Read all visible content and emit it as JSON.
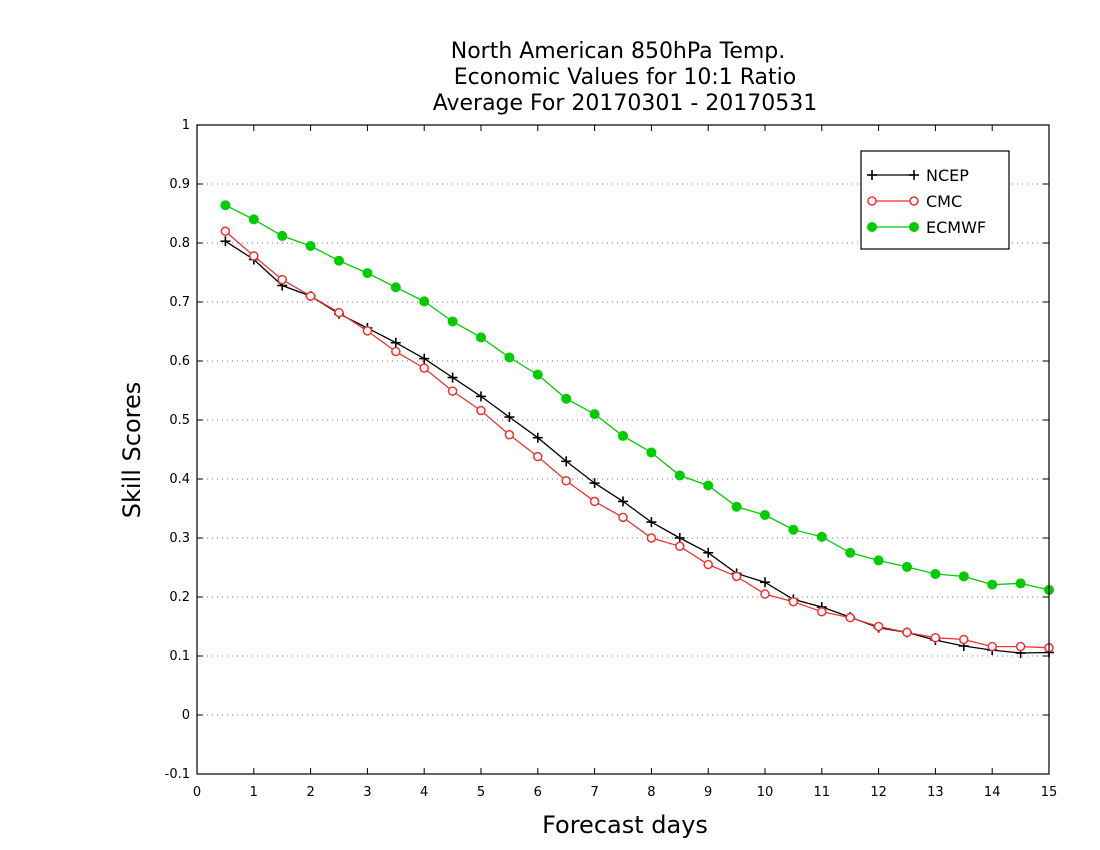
{
  "chart_data": {
    "type": "line",
    "title_lines": [
      "North American 850hPa Temp.",
      "Economic Values for 10:1 Ratio",
      "Average For 20170301 - 20170531"
    ],
    "xlabel": "Forecast days",
    "ylabel": "Skill Scores",
    "xlim": [
      0,
      15
    ],
    "ylim": [
      -0.1,
      1
    ],
    "x_ticks": [
      0,
      1,
      2,
      3,
      4,
      5,
      6,
      7,
      8,
      9,
      10,
      11,
      12,
      13,
      14,
      15
    ],
    "x_tick_labels": [
      "0",
      "1",
      "2",
      "3",
      "4",
      "5",
      "6",
      "7",
      "8",
      "9",
      "10",
      "11",
      "12",
      "13",
      "14",
      "15"
    ],
    "y_ticks": [
      -0.1,
      0,
      0.1,
      0.2,
      0.3,
      0.4,
      0.5,
      0.6,
      0.7,
      0.8,
      0.9,
      1
    ],
    "y_tick_labels": [
      "-0.1",
      "0",
      "0.1",
      "0.2",
      "0.3",
      "0.4",
      "0.5",
      "0.6",
      "0.7",
      "0.8",
      "0.9",
      "1"
    ],
    "grid": "horizontal dotted",
    "legend_position": "top-right",
    "x": [
      0.5,
      1,
      1.5,
      2,
      2.5,
      3,
      3.5,
      4,
      4.5,
      5,
      5.5,
      6,
      6.5,
      7,
      7.5,
      8,
      8.5,
      9,
      9.5,
      10,
      10.5,
      11,
      11.5,
      12,
      12.5,
      13,
      13.5,
      14,
      14.5,
      15
    ],
    "series": [
      {
        "name": "NCEP",
        "color": "#000000",
        "marker": "plus",
        "values": [
          0.803,
          0.772,
          0.728,
          0.71,
          0.68,
          0.656,
          0.631,
          0.604,
          0.572,
          0.54,
          0.505,
          0.47,
          0.43,
          0.393,
          0.362,
          0.327,
          0.3,
          0.275,
          0.24,
          0.225,
          0.196,
          0.183,
          0.166,
          0.148,
          0.14,
          0.127,
          0.117,
          0.11,
          0.105,
          0.106
        ]
      },
      {
        "name": "CMC",
        "color": "#ee3333",
        "marker": "open-circle",
        "values": [
          0.82,
          0.778,
          0.738,
          0.71,
          0.682,
          0.651,
          0.616,
          0.588,
          0.549,
          0.516,
          0.475,
          0.438,
          0.397,
          0.362,
          0.335,
          0.3,
          0.286,
          0.255,
          0.235,
          0.205,
          0.192,
          0.175,
          0.165,
          0.15,
          0.14,
          0.131,
          0.128,
          0.116,
          0.116,
          0.114
        ]
      },
      {
        "name": "ECMWF",
        "color": "#00cc00",
        "marker": "filled-circle",
        "values": [
          0.864,
          0.84,
          0.812,
          0.795,
          0.77,
          0.749,
          0.725,
          0.701,
          0.667,
          0.64,
          0.606,
          0.577,
          0.536,
          0.51,
          0.473,
          0.445,
          0.406,
          0.389,
          0.353,
          0.339,
          0.314,
          0.302,
          0.275,
          0.262,
          0.251,
          0.239,
          0.235,
          0.221,
          0.223,
          0.212
        ]
      }
    ]
  }
}
